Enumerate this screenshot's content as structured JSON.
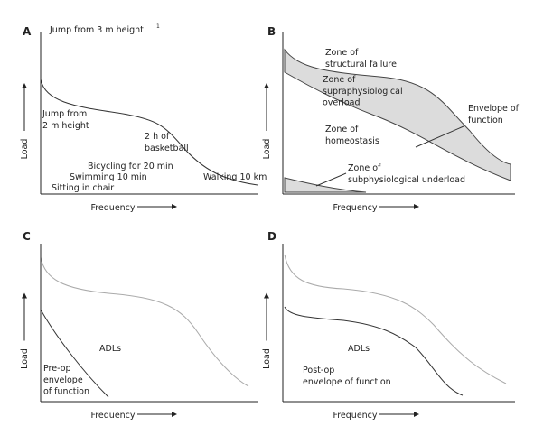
{
  "panels": [
    {
      "letter": "A",
      "y_label": "Load",
      "x_label": "Frequency",
      "annotations": [
        [
          "Jump from 3 m height"
        ],
        [
          "1"
        ],
        [
          "Jump from",
          "2 m height"
        ],
        [
          "2 h of",
          "basketball"
        ],
        [
          "Bicycling for 20 min"
        ],
        [
          "Swimming 10 min"
        ],
        [
          "Sitting in chair"
        ],
        [
          "Walking 10 km"
        ]
      ]
    },
    {
      "letter": "B",
      "y_label": "Load",
      "x_label": "Frequency",
      "annotations": [
        [
          "Zone of",
          "structural failure"
        ],
        [
          "Zone of",
          "supraphysiological",
          "overload"
        ],
        [
          "Zone of",
          "homeostasis"
        ],
        [
          "Envelope of",
          "function"
        ],
        [
          "Zone of",
          "subphysiological underload"
        ]
      ]
    },
    {
      "letter": "C",
      "y_label": "Load",
      "x_label": "Frequency",
      "annotations": [
        [
          "ADLs"
        ],
        [
          "Pre-op",
          "envelope",
          "of function"
        ]
      ]
    },
    {
      "letter": "D",
      "y_label": "Load",
      "x_label": "Frequency",
      "annotations": [
        [
          "ADLs"
        ],
        [
          "Post-op",
          "envelope of function"
        ]
      ]
    }
  ]
}
